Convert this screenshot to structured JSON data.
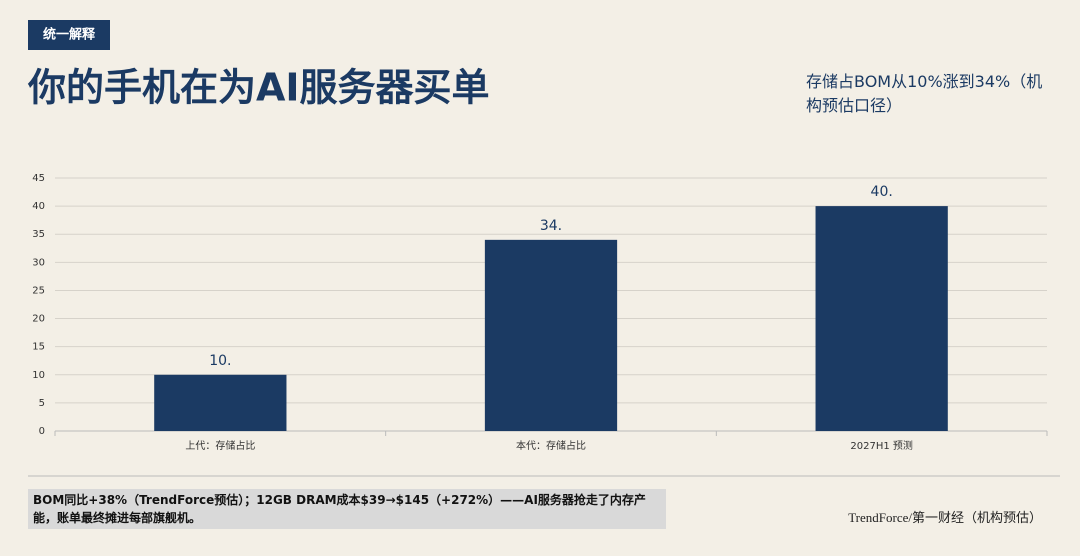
{
  "chart_data": {
    "type": "bar",
    "tag": "统一解释",
    "title": "你的手机在为AI服务器买单",
    "subtitle": "存储占BOM从10%涨到34%（机构预估口径）",
    "categories": [
      "上代：存储占比",
      "本代：存储占比",
      "2027H1 预测"
    ],
    "values": [
      10,
      34,
      40
    ],
    "value_labels": [
      "10.",
      "34.",
      "40."
    ],
    "color": "#1b3a63",
    "ylim": [
      0,
      45
    ],
    "yticks": [
      0,
      5,
      10,
      15,
      20,
      25,
      30,
      35,
      40,
      45
    ],
    "grid": true,
    "note": "BOM同比+38%（TrendForce预估）；12GB DRAM成本$39→$145（+272%）——AI服务器抢走了内存产能，账单最终摊进每部旗舰机。",
    "source": "TrendForce/第一财经（机构预估）"
  }
}
